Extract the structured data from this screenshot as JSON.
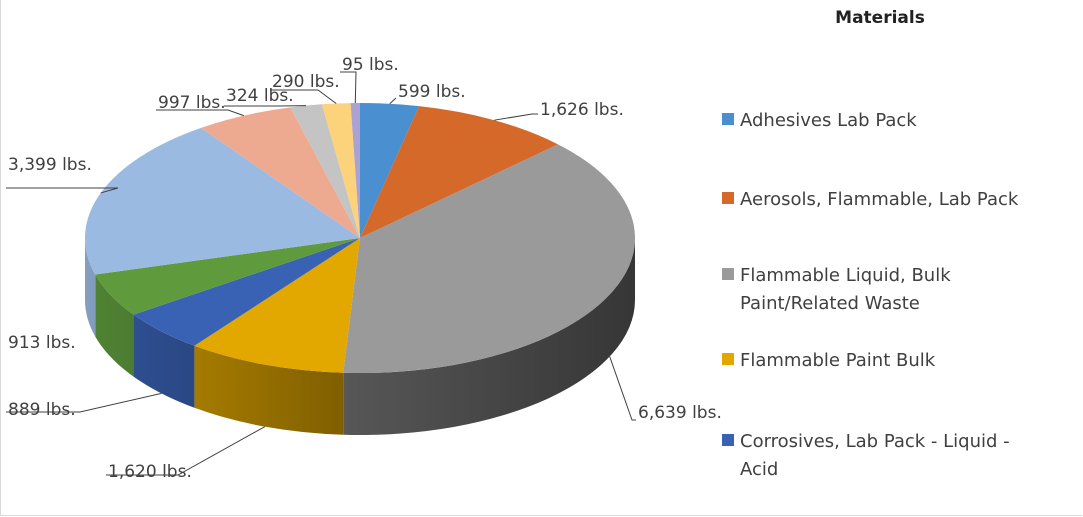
{
  "chart_data": {
    "type": "pie",
    "legend_title": "Materials",
    "categories": [
      "Adhesives Lab Pack",
      "Aerosols, Flammable, Lab Pack",
      "Flammable Liquid, Bulk Paint/Related Waste",
      "Flammable Paint Bulk",
      "Corrosives, Lab Pack - Liquid - Acid",
      null,
      null,
      null,
      null,
      null,
      null
    ],
    "values": [
      599,
      1626,
      6639,
      1620,
      889,
      913,
      3399,
      997,
      324,
      290,
      95
    ],
    "value_labels": [
      "599 lbs.",
      "1,626 lbs.",
      "6,639 lbs.",
      "1,620 lbs.",
      "889 lbs.",
      "913 lbs.",
      "3,399 lbs.",
      "997 lbs.",
      "324 lbs.",
      "290 lbs.",
      "95 lbs."
    ],
    "colors": [
      "#4a8fcf",
      "#d4692a",
      "#9a9a9a",
      "#e2a800",
      "#3a62b4",
      "#5f9b3d",
      "#9bbae2",
      "#eeaa90",
      "#c4c4c4",
      "#fcd27a",
      "#aaa2d2"
    ],
    "legend": "right"
  }
}
